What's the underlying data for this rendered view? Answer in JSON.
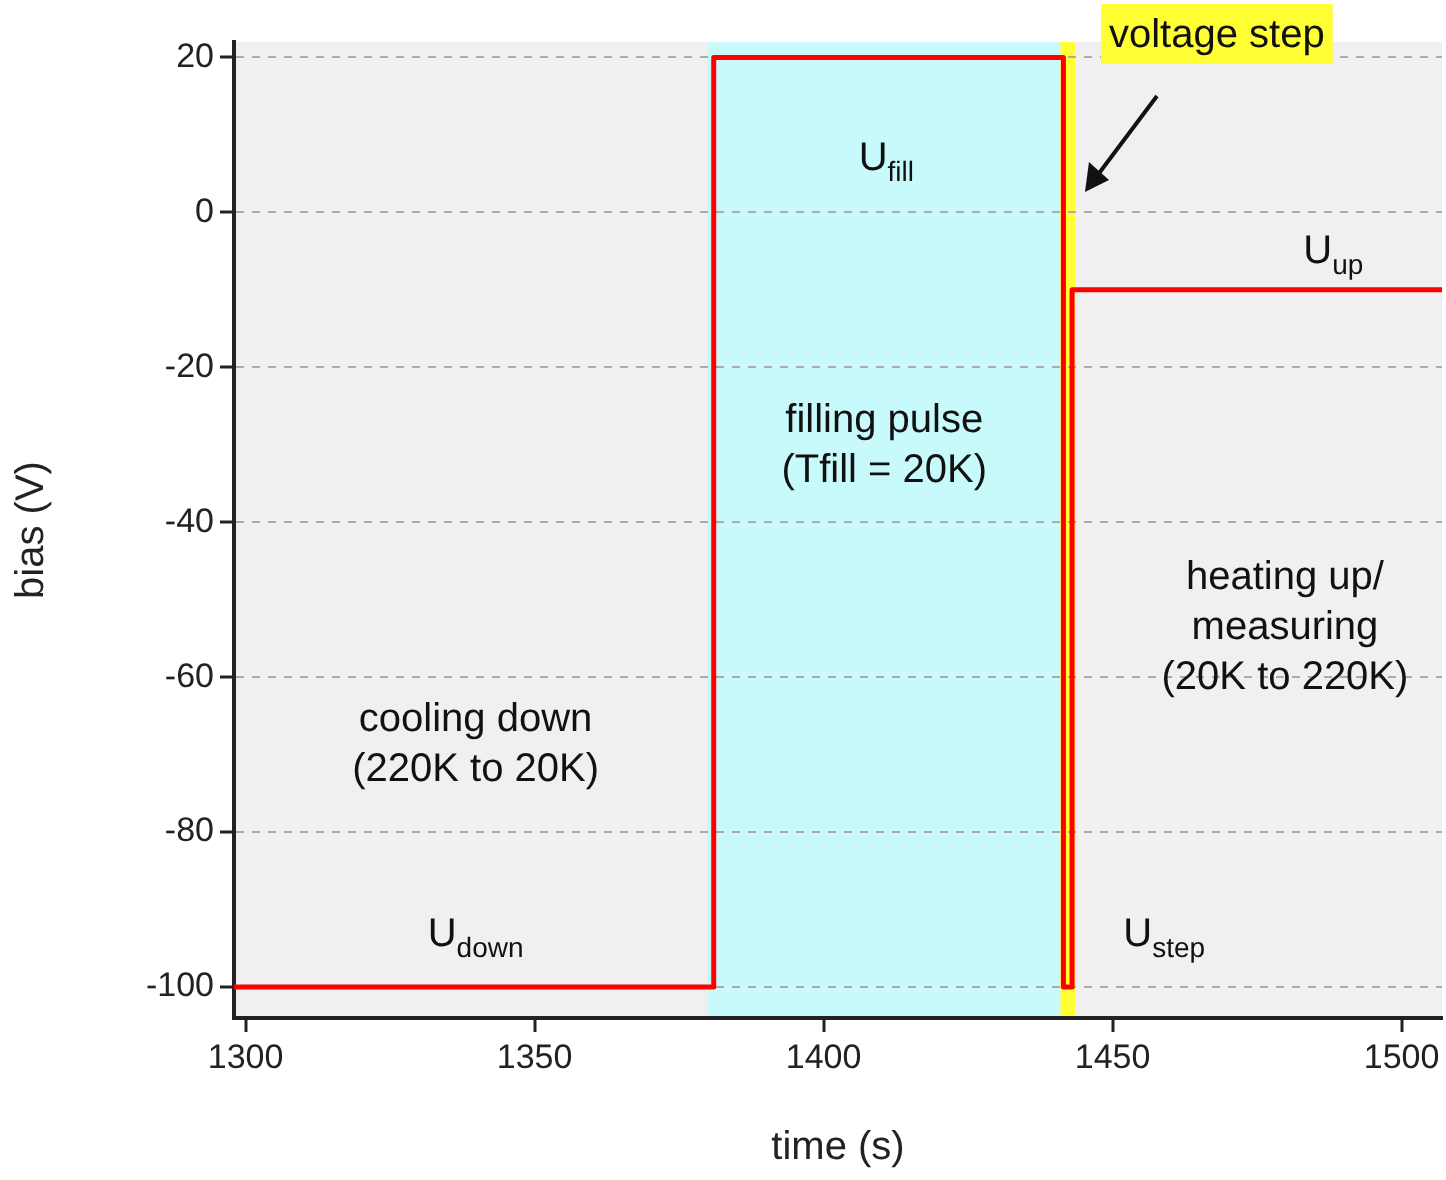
{
  "chart_data": {
    "type": "step",
    "xlabel": "time (s)",
    "ylabel": "bias (V)",
    "x": [
      1298,
      1381,
      1441.5,
      1443,
      1507
    ],
    "series": [
      {
        "color": "#ff0000",
        "values": [
          -100,
          20,
          -100,
          -10,
          -10
        ]
      }
    ],
    "xlim": [
      1298,
      1507
    ],
    "ylim": [
      -104,
      22
    ],
    "xticks": [
      1300,
      1350,
      1400,
      1450,
      1500
    ],
    "yticks": [
      -100,
      -80,
      -60,
      -40,
      -20,
      0,
      20
    ],
    "grid": "y",
    "legend": false,
    "marker": "none",
    "line_style": "solid",
    "bands": [
      {
        "axis": "x",
        "from": 1380,
        "to": 1441,
        "label": "filling pulse\n(Tfill = 20K)",
        "color": "#c8fafc"
      },
      {
        "axis": "x",
        "from": 1441,
        "to": 1443.5,
        "label": "voltage step",
        "color": "#ffff33"
      }
    ],
    "annotations": [
      "U$_{fill}$",
      "U$_{up}$",
      "U$_{down}$",
      "U$_{step}$",
      "cooling down\n(220K to 20K)",
      "heating up/\nmeasuring\n(20K to 220K)"
    ]
  }
}
